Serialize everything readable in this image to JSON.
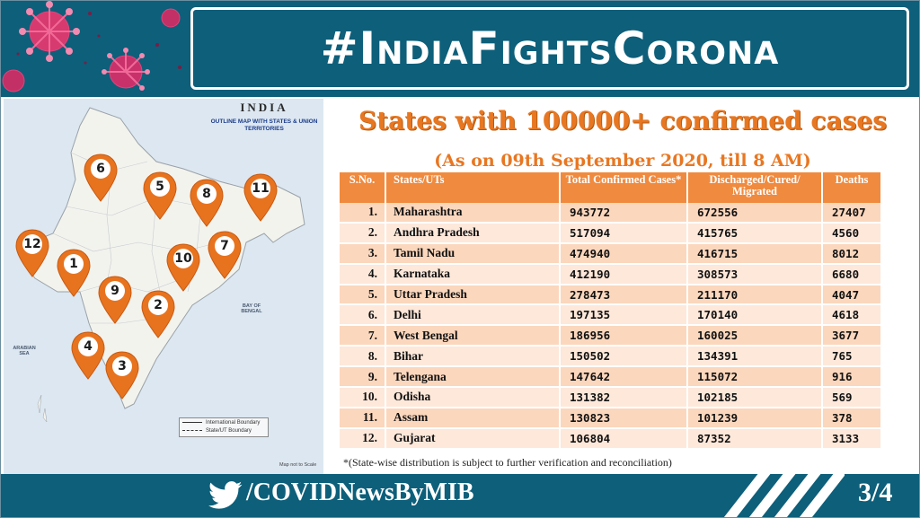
{
  "header": {
    "title": "#IndiaFightsCorona"
  },
  "map": {
    "title": "INDIA",
    "subtitle": "OUTLINE MAP WITH STATES & UNION TERRITORIES",
    "bay_label": "BAY OF BENGAL",
    "sea_label": "ARABIAN SEA",
    "legend": [
      "International Boundary",
      "State/UT Boundary"
    ],
    "scale_note": "Map not to Scale",
    "pins": [
      "1",
      "2",
      "3",
      "4",
      "5",
      "6",
      "7",
      "8",
      "9",
      "10",
      "11",
      "12"
    ],
    "pin_color": "#e8731f"
  },
  "main": {
    "heading": "States with 100000+ confirmed cases",
    "subheading": "(As on 09th September 2020, till 8 AM)",
    "columns": [
      "S.No.",
      "States/UTs",
      "Total Confirmed Cases*",
      "Discharged/Cured/ Migrated",
      "Deaths"
    ],
    "rows": [
      {
        "sno": "1.",
        "state": "Maharashtra",
        "confirmed": "943772",
        "discharged": "672556",
        "deaths": "27407"
      },
      {
        "sno": "2.",
        "state": "Andhra Pradesh",
        "confirmed": "517094",
        "discharged": "415765",
        "deaths": "4560"
      },
      {
        "sno": "3.",
        "state": "Tamil Nadu",
        "confirmed": "474940",
        "discharged": "416715",
        "deaths": "8012"
      },
      {
        "sno": "4.",
        "state": "Karnataka",
        "confirmed": "412190",
        "discharged": "308573",
        "deaths": "6680"
      },
      {
        "sno": "5.",
        "state": "Uttar Pradesh",
        "confirmed": "278473",
        "discharged": "211170",
        "deaths": "4047"
      },
      {
        "sno": "6.",
        "state": "Delhi",
        "confirmed": "197135",
        "discharged": "170140",
        "deaths": "4618"
      },
      {
        "sno": "7.",
        "state": "West Bengal",
        "confirmed": "186956",
        "discharged": "160025",
        "deaths": "3677"
      },
      {
        "sno": "8.",
        "state": "Bihar",
        "confirmed": "150502",
        "discharged": "134391",
        "deaths": "765"
      },
      {
        "sno": "9.",
        "state": "Telengana",
        "confirmed": "147642",
        "discharged": "115072",
        "deaths": "916"
      },
      {
        "sno": "10.",
        "state": "Odisha",
        "confirmed": "131382",
        "discharged": "102185",
        "deaths": "569"
      },
      {
        "sno": "11.",
        "state": "Assam",
        "confirmed": "130823",
        "discharged": "101239",
        "deaths": "378"
      },
      {
        "sno": "12.",
        "state": "Gujarat",
        "confirmed": "106804",
        "discharged": "87352",
        "deaths": "3133"
      }
    ],
    "footnote": "*(State-wise distribution is subject to further verification and reconciliation)"
  },
  "footer": {
    "handle": "/COVIDNewsByMIB",
    "page": "3/4",
    "twitter_icon": "twitter-bird-icon"
  },
  "colors": {
    "brand_teal": "#0d5f7a",
    "accent_orange": "#e87722",
    "header_row": "#f08a3e",
    "row_dark": "#fbd7bd",
    "row_light": "#fde8da"
  }
}
